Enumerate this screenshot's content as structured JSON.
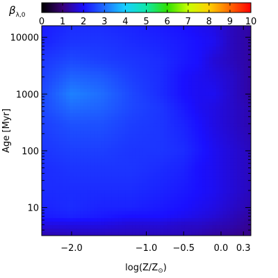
{
  "chart_data": {
    "type": "heatmap",
    "title": "",
    "xlabel": "log(Z/Z⊙)",
    "ylabel": "Age [Myr]",
    "x_scale": "linear",
    "y_scale": "log",
    "xlim": [
      -2.4,
      0.4
    ],
    "ylim": [
      3.2,
      16000
    ],
    "x_ticks": [
      {
        "value": -2.0,
        "label": "−2.0"
      },
      {
        "value": -1.0,
        "label": "−1.0"
      },
      {
        "value": -0.5,
        "label": "−0.5"
      },
      {
        "value": 0.0,
        "label": "0.0"
      },
      {
        "value": 0.3,
        "label": "0.3"
      }
    ],
    "y_ticks": [
      {
        "value": 10,
        "label": "10"
      },
      {
        "value": 100,
        "label": "100"
      },
      {
        "value": 1000,
        "label": "1000"
      },
      {
        "value": 10000,
        "label": "10000"
      }
    ],
    "colorbar": {
      "label": "β",
      "label_subscript": "λ,0",
      "min": 0,
      "max": 10,
      "ticks": [
        "0",
        "1",
        "2",
        "3",
        "4",
        "5",
        "6",
        "7",
        "8",
        "9",
        "10"
      ],
      "colormap": [
        "#000000",
        "#3a0078",
        "#1a10ff",
        "#1f6dff",
        "#17d0ff",
        "#10e8a8",
        "#2fe000",
        "#c8ff00",
        "#ffd000",
        "#ff6800",
        "#ff0000"
      ]
    },
    "z_grid": {
      "x": [
        -2.4,
        -2.0,
        -1.6,
        -1.2,
        -0.8,
        -0.5,
        -0.3,
        -0.1,
        0.15,
        0.4
      ],
      "y": [
        3.2,
        5,
        7,
        10,
        20,
        50,
        100,
        300,
        600,
        1000,
        2000,
        4000,
        8000,
        16000
      ],
      "z": [
        [
          1.4,
          1.5,
          1.5,
          1.5,
          1.5,
          1.5,
          1.4,
          1.3,
          1.2,
          1.1
        ],
        [
          1.8,
          1.8,
          1.8,
          1.7,
          1.7,
          1.6,
          1.6,
          1.5,
          1.4,
          1.2
        ],
        [
          2.1,
          2.2,
          2.1,
          2.0,
          2.0,
          1.9,
          1.8,
          1.7,
          1.5,
          1.3
        ],
        [
          2.2,
          2.3,
          2.2,
          2.2,
          2.1,
          2.0,
          1.9,
          1.8,
          1.6,
          1.4
        ],
        [
          2.3,
          2.3,
          2.3,
          2.3,
          2.2,
          2.1,
          2.0,
          1.9,
          1.7,
          1.5
        ],
        [
          2.3,
          2.4,
          2.4,
          2.4,
          2.3,
          2.2,
          2.0,
          1.9,
          1.7,
          1.5
        ],
        [
          2.4,
          2.5,
          2.5,
          2.4,
          2.4,
          2.3,
          2.1,
          1.9,
          1.7,
          1.5
        ],
        [
          2.5,
          2.7,
          2.7,
          2.5,
          2.4,
          2.2,
          2.0,
          1.8,
          1.6,
          1.4
        ],
        [
          2.6,
          3.0,
          2.9,
          2.6,
          2.4,
          2.1,
          1.9,
          1.8,
          1.6,
          1.4
        ],
        [
          2.6,
          3.2,
          3.0,
          2.6,
          2.3,
          2.0,
          1.9,
          1.9,
          1.6,
          1.3
        ],
        [
          2.5,
          2.9,
          2.8,
          2.5,
          2.3,
          2.0,
          1.9,
          1.8,
          1.6,
          1.3
        ],
        [
          2.4,
          2.6,
          2.5,
          2.4,
          2.3,
          2.1,
          2.0,
          1.7,
          1.5,
          1.3
        ],
        [
          2.2,
          2.4,
          2.4,
          2.3,
          2.2,
          2.1,
          2.0,
          1.9,
          1.5,
          1.3
        ],
        [
          2.1,
          2.3,
          2.3,
          2.2,
          2.1,
          2.0,
          1.9,
          1.8,
          1.5,
          1.3
        ]
      ]
    }
  }
}
